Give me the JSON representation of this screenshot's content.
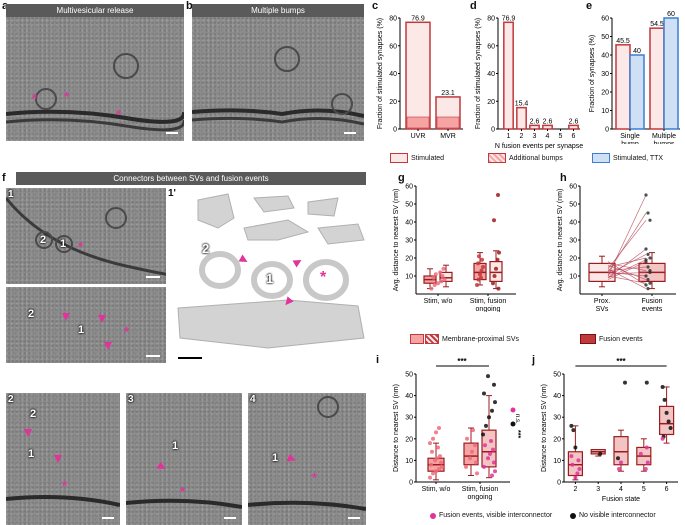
{
  "panels": {
    "a": {
      "letter": "a",
      "title": "Multivesicular release"
    },
    "b": {
      "letter": "b",
      "title": "Multiple bumps"
    },
    "c": {
      "letter": "c"
    },
    "d": {
      "letter": "d"
    },
    "e": {
      "letter": "e"
    },
    "f": {
      "letter": "f",
      "banner": "Connectors between SVs and fusion events",
      "sub1": "1",
      "sub1p": "1'",
      "sub2": "2",
      "sub3": "3",
      "sub4": "4"
    },
    "g": {
      "letter": "g"
    },
    "h": {
      "letter": "h"
    },
    "i": {
      "letter": "i"
    },
    "j": {
      "letter": "j"
    }
  },
  "em_marks": {
    "star": "*",
    "n1": "1",
    "n2": "2"
  },
  "legend_cde": {
    "stimulated": "Stimulated",
    "additional": "Additional bumps",
    "ttx": "Stimulated, TTX"
  },
  "legend_gh": {
    "membrane": "Membrane-proximal SVs",
    "fusion": "Fusion events"
  },
  "legend_ij": {
    "visible": "Fusion events, visible interconnector",
    "novisible": "No visible interconnector"
  },
  "colors": {
    "red": "#c0393b",
    "pink": "#f5a3a3",
    "blue": "#3b7fd4",
    "lightblue": "#cfe0f5",
    "magenta": "#e0349a",
    "darkred": "#9b1c1f"
  },
  "chart_data": [
    {
      "panel": "c",
      "type": "bar",
      "categories": [
        "UVR",
        "MVR"
      ],
      "values": [
        76.9,
        23.1
      ],
      "value_labels": [
        "76.9",
        "23.1"
      ],
      "ylabel": "Fraction of stimulated synapses (%)",
      "ylim": [
        0,
        80
      ],
      "yticks": [
        "0",
        "20",
        "40",
        "60",
        "80"
      ]
    },
    {
      "panel": "d",
      "type": "bar",
      "categories": [
        "1",
        "2",
        "3",
        "4",
        "5",
        "6"
      ],
      "values": [
        76.9,
        15.4,
        2.6,
        2.6,
        0,
        2.6
      ],
      "value_labels": [
        "76.9",
        "15.4",
        "2.6",
        "2.6",
        "",
        "2.6"
      ],
      "xlabel": "N fusion events per synapse",
      "ylabel": "Fraction of stimulated synapses (%)",
      "ylim": [
        0,
        80
      ],
      "yticks": [
        "0",
        "20",
        "40",
        "60",
        "80"
      ]
    },
    {
      "panel": "e",
      "type": "bar",
      "categories": [
        "Single bump",
        "Multiple bumps"
      ],
      "cat_lines": [
        [
          "Single",
          "bump"
        ],
        [
          "Multiple",
          "bumps"
        ]
      ],
      "series": [
        {
          "name": "Stimulated",
          "values": [
            45.5,
            54.5
          ],
          "labels": [
            "45.5",
            "54.5"
          ]
        },
        {
          "name": "Stimulated, TTX",
          "values": [
            40,
            60
          ],
          "labels": [
            "40",
            "60"
          ]
        }
      ],
      "ylabel": "Fraction of synapses (%)",
      "ylim": [
        0,
        60
      ],
      "yticks": [
        "0",
        "10",
        "20",
        "30",
        "40",
        "50",
        "60"
      ]
    },
    {
      "panel": "g",
      "type": "scatter",
      "categories": [
        "Stim, w/o",
        "Stim, fusion ongoing"
      ],
      "cat_lines": [
        [
          "Stim, w/o"
        ],
        [
          "Stim, fusion",
          "ongoing"
        ]
      ],
      "ylabel": "Avg. distance to nearest SV (nm)",
      "ylim": [
        0,
        60
      ],
      "yticks": [
        "10",
        "20",
        "30",
        "40",
        "50",
        "60"
      ],
      "boxes": [
        {
          "cat": 0,
          "q1": 6,
          "med": 8,
          "q3": 10,
          "lo": 3,
          "hi": 14
        },
        {
          "cat": 0,
          "q1": 7,
          "med": 9,
          "q3": 12,
          "lo": 4,
          "hi": 16
        },
        {
          "cat": 1,
          "q1": 8,
          "med": 12,
          "q3": 17,
          "lo": 5,
          "hi": 23
        },
        {
          "cat": 1,
          "q1": 7,
          "med": 12,
          "q3": 18,
          "lo": 3,
          "hi": 24
        }
      ],
      "points": [
        [
          0,
          3
        ],
        [
          0,
          5
        ],
        [
          0,
          6
        ],
        [
          0,
          7
        ],
        [
          0,
          8
        ],
        [
          0,
          9
        ],
        [
          0,
          10
        ],
        [
          0,
          11
        ],
        [
          0,
          12
        ],
        [
          0,
          14
        ],
        [
          1,
          5
        ],
        [
          1,
          8
        ],
        [
          1,
          11
        ],
        [
          1,
          13
        ],
        [
          1,
          15
        ],
        [
          1,
          17
        ],
        [
          1,
          19
        ],
        [
          1,
          21
        ],
        [
          1,
          9
        ],
        [
          1.3,
          3
        ],
        [
          1.3,
          6
        ],
        [
          1.3,
          10
        ],
        [
          1.3,
          14
        ],
        [
          1.3,
          19
        ],
        [
          1.3,
          23
        ],
        [
          1.3,
          41
        ],
        [
          1.3,
          55
        ]
      ]
    },
    {
      "panel": "h",
      "type": "scatter",
      "categories": [
        "Prox. SVs",
        "Fusion events"
      ],
      "cat_lines": [
        [
          "Prox.",
          "SVs"
        ],
        [
          "Fusion",
          "events"
        ]
      ],
      "ylabel": "Avg. distance to nearest SV (nm)",
      "ylim": [
        0,
        60
      ],
      "yticks": [
        "10",
        "20",
        "30",
        "40",
        "50",
        "60"
      ],
      "boxes": [
        {
          "cat": 0,
          "q1": 7,
          "med": 12,
          "q3": 17,
          "lo": 4,
          "hi": 21
        },
        {
          "cat": 1,
          "q1": 7,
          "med": 12,
          "q3": 17,
          "lo": 3,
          "hi": 23
        }
      ],
      "pairs": [
        [
          10,
          55
        ],
        [
          12,
          45
        ],
        [
          14,
          41
        ],
        [
          9,
          25
        ],
        [
          11,
          22
        ],
        [
          15,
          20
        ],
        [
          8,
          18
        ],
        [
          13,
          15
        ],
        [
          17,
          13
        ],
        [
          12,
          10
        ],
        [
          16,
          8
        ],
        [
          10,
          6
        ],
        [
          18,
          5
        ],
        [
          14,
          3
        ],
        [
          11,
          12
        ],
        [
          9,
          19
        ]
      ]
    },
    {
      "panel": "i",
      "type": "scatter",
      "categories": [
        "Stim, w/o",
        "Stim, fusion ongoing"
      ],
      "cat_lines": [
        [
          "Stim, w/o"
        ],
        [
          "Stim, fusion",
          "ongoing"
        ]
      ],
      "ylabel": "Distance to nearest SV (nm)",
      "ylim": [
        0,
        50
      ],
      "yticks": [
        "0",
        "10",
        "20",
        "30",
        "40",
        "50"
      ],
      "significance": "***",
      "side_labels": [
        "n.s.",
        "***"
      ],
      "boxes": [
        {
          "cat": 0,
          "q1": 5,
          "med": 8,
          "q3": 11,
          "lo": 1,
          "hi": 18
        },
        {
          "cat": 1,
          "q1": 8,
          "med": 12,
          "q3": 18,
          "lo": 3,
          "hi": 25
        },
        {
          "cat": 1.3,
          "q1": 7,
          "med": 14,
          "q3": 24,
          "lo": 2,
          "hi": 40
        }
      ],
      "points_red": [
        [
          0,
          2
        ],
        [
          0,
          4
        ],
        [
          0,
          5
        ],
        [
          0,
          6
        ],
        [
          0,
          7
        ],
        [
          0,
          8
        ],
        [
          0,
          9
        ],
        [
          0,
          10
        ],
        [
          0,
          11
        ],
        [
          0,
          12
        ],
        [
          0,
          14
        ],
        [
          0,
          16
        ],
        [
          0,
          18
        ],
        [
          0,
          20
        ],
        [
          0,
          23
        ],
        [
          0,
          25
        ],
        [
          1,
          4
        ],
        [
          1,
          7
        ],
        [
          1,
          9
        ],
        [
          1,
          11
        ],
        [
          1,
          14
        ],
        [
          1,
          17
        ],
        [
          1,
          20
        ],
        [
          1,
          24
        ]
      ],
      "points_black": [
        [
          1.3,
          22
        ],
        [
          1.3,
          26
        ],
        [
          1.3,
          30
        ],
        [
          1.3,
          33
        ],
        [
          1.3,
          37
        ],
        [
          1.3,
          41
        ],
        [
          1.3,
          45
        ],
        [
          1.3,
          49
        ]
      ],
      "points_magenta": [
        [
          1.3,
          3
        ],
        [
          1.3,
          5
        ],
        [
          1.3,
          7
        ],
        [
          1.3,
          9
        ],
        [
          1.3,
          11
        ],
        [
          1.3,
          13
        ],
        [
          1.3,
          15
        ],
        [
          1.3,
          17
        ],
        [
          1.3,
          19
        ]
      ]
    },
    {
      "panel": "j",
      "type": "scatter",
      "categories": [
        "2",
        "3",
        "4",
        "5",
        "6"
      ],
      "xlabel": "Fusion state",
      "ylabel": "Distance to nearest SV (nm)",
      "ylim": [
        0,
        50
      ],
      "yticks": [
        "0",
        "10",
        "20",
        "30",
        "40",
        "50"
      ],
      "significance": "***",
      "boxes": [
        {
          "cat": 0,
          "q1": 3,
          "med": 8,
          "q3": 14,
          "lo": 1,
          "hi": 26
        },
        {
          "cat": 1,
          "q1": 13,
          "med": 14,
          "q3": 15,
          "lo": 12,
          "hi": 15
        },
        {
          "cat": 2,
          "q1": 8,
          "med": 14,
          "q3": 21,
          "lo": 5,
          "hi": 24
        },
        {
          "cat": 3,
          "q1": 8,
          "med": 12,
          "q3": 16,
          "lo": 5,
          "hi": 20
        },
        {
          "cat": 4,
          "q1": 22,
          "med": 27,
          "q3": 35,
          "lo": 18,
          "hi": 44
        }
      ],
      "points_black": [
        [
          0,
          26
        ],
        [
          0,
          24
        ],
        [
          0,
          16
        ],
        [
          1,
          13
        ],
        [
          2,
          46
        ],
        [
          2,
          11
        ],
        [
          3,
          46
        ],
        [
          4,
          44
        ],
        [
          4,
          38
        ],
        [
          4,
          32
        ],
        [
          4,
          28
        ],
        [
          4,
          25
        ],
        [
          4,
          21
        ]
      ],
      "points_magenta": [
        [
          0,
          2
        ],
        [
          0,
          4
        ],
        [
          0,
          6
        ],
        [
          0,
          8
        ],
        [
          0,
          10
        ],
        [
          0,
          12
        ],
        [
          2,
          6
        ],
        [
          2,
          9
        ],
        [
          3,
          6
        ],
        [
          3,
          9
        ],
        [
          3,
          13
        ],
        [
          3,
          16
        ],
        [
          4,
          20
        ]
      ]
    }
  ]
}
